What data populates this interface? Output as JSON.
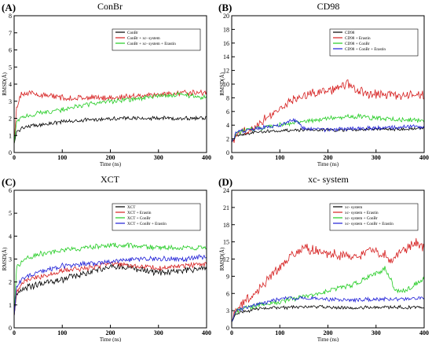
{
  "chart_data": [
    {
      "panel": "(A)",
      "type": "line",
      "title": "ConBr",
      "xlabel": "Time (ns)",
      "ylabel": "RMSD(Å)",
      "xlim": [
        0,
        400
      ],
      "ylim": [
        0,
        8
      ],
      "xticks": [
        0,
        100,
        200,
        300,
        400
      ],
      "yticks": [
        0,
        1,
        2,
        3,
        4,
        5,
        6,
        7,
        8
      ],
      "legend_position": "top-right",
      "series": [
        {
          "name": "ConBr",
          "color": "#000000",
          "x": [
            0,
            5,
            20,
            50,
            100,
            150,
            200,
            250,
            300,
            350,
            400
          ],
          "y": [
            0.5,
            1.2,
            1.5,
            1.6,
            1.8,
            1.9,
            2.0,
            2.0,
            2.0,
            2.0,
            2.0
          ],
          "noise": 0.1
        },
        {
          "name": "ConBr + xc- system",
          "color": "#d62020",
          "x": [
            0,
            5,
            15,
            50,
            100,
            150,
            200,
            250,
            300,
            350,
            400
          ],
          "y": [
            0.5,
            2.6,
            3.5,
            3.4,
            3.2,
            3.2,
            3.2,
            3.3,
            3.4,
            3.5,
            3.5
          ],
          "noise": 0.15
        },
        {
          "name": "ConBr + xc- system + Erastin",
          "color": "#22cc22",
          "x": [
            0,
            5,
            20,
            50,
            100,
            150,
            200,
            250,
            300,
            350,
            400
          ],
          "y": [
            0.5,
            1.8,
            2.1,
            2.3,
            2.5,
            2.8,
            3.0,
            3.1,
            3.3,
            3.4,
            3.2
          ],
          "noise": 0.12
        }
      ]
    },
    {
      "panel": "(B)",
      "type": "line",
      "title": "CD98",
      "xlabel": "Time (ns)",
      "ylabel": "RMSD(Å)",
      "xlim": [
        0,
        400
      ],
      "ylim": [
        0,
        20
      ],
      "xticks": [
        0,
        100,
        200,
        300,
        400
      ],
      "yticks": [
        0,
        2,
        4,
        6,
        8,
        10,
        12,
        14,
        16,
        18,
        20
      ],
      "legend_position": "top-right",
      "series": [
        {
          "name": "CD98",
          "color": "#000000",
          "x": [
            0,
            10,
            50,
            100,
            150,
            200,
            250,
            300,
            350,
            400
          ],
          "y": [
            1.5,
            2.5,
            3.0,
            3.2,
            3.3,
            3.3,
            3.3,
            3.4,
            3.4,
            3.5
          ],
          "noise": 0.2
        },
        {
          "name": "CD98 + Erastin",
          "color": "#d62020",
          "x": [
            0,
            10,
            50,
            100,
            150,
            200,
            240,
            280,
            320,
            360,
            400
          ],
          "y": [
            1.5,
            2.5,
            4.0,
            6.5,
            8.5,
            9.0,
            10.0,
            8.5,
            8.5,
            8.2,
            8.5
          ],
          "noise": 0.6
        },
        {
          "name": "CD98 + ConBr",
          "color": "#22cc22",
          "x": [
            0,
            10,
            50,
            100,
            150,
            200,
            250,
            300,
            350,
            400
          ],
          "y": [
            1.5,
            3.0,
            3.5,
            4.0,
            4.5,
            5.0,
            5.3,
            5.0,
            4.8,
            4.7
          ],
          "noise": 0.3
        },
        {
          "name": "CD98 + ConBr + Erastin",
          "color": "#1f1fd6",
          "x": [
            0,
            10,
            50,
            100,
            130,
            150,
            200,
            250,
            300,
            350,
            400
          ],
          "y": [
            1.5,
            3.0,
            3.5,
            4.0,
            4.8,
            3.5,
            3.3,
            3.5,
            3.6,
            3.7,
            3.8
          ],
          "noise": 0.25
        }
      ]
    },
    {
      "panel": "(C)",
      "type": "line",
      "title": "XCT",
      "xlabel": "Time (ns)",
      "ylabel": "RMSD(Å)",
      "xlim": [
        0,
        400
      ],
      "ylim": [
        0,
        6
      ],
      "xticks": [
        0,
        100,
        200,
        300,
        400
      ],
      "yticks": [
        0,
        1,
        2,
        3,
        4,
        5,
        6
      ],
      "legend_position": "top-right",
      "series": [
        {
          "name": "XCT",
          "color": "#000000",
          "x": [
            0,
            5,
            20,
            50,
            100,
            150,
            200,
            250,
            300,
            350,
            400
          ],
          "y": [
            0.5,
            1.5,
            1.7,
            1.9,
            2.1,
            2.4,
            2.7,
            2.6,
            2.4,
            2.5,
            2.6
          ],
          "noise": 0.12
        },
        {
          "name": "XCT + Erastin",
          "color": "#d62020",
          "x": [
            0,
            5,
            20,
            50,
            100,
            150,
            200,
            250,
            300,
            350,
            400
          ],
          "y": [
            0.5,
            1.6,
            2.0,
            2.2,
            2.5,
            2.6,
            2.8,
            2.7,
            2.6,
            2.7,
            2.8
          ],
          "noise": 0.1
        },
        {
          "name": "XCT + ConBr",
          "color": "#22cc22",
          "x": [
            0,
            5,
            20,
            50,
            100,
            150,
            200,
            250,
            300,
            350,
            400
          ],
          "y": [
            0.5,
            2.6,
            3.0,
            3.2,
            3.4,
            3.5,
            3.6,
            3.6,
            3.5,
            3.5,
            3.5
          ],
          "noise": 0.1
        },
        {
          "name": "XCT + ConBr + Erastin",
          "color": "#1f1fd6",
          "x": [
            0,
            5,
            20,
            50,
            100,
            150,
            200,
            250,
            300,
            350,
            400
          ],
          "y": [
            0.5,
            1.8,
            2.2,
            2.4,
            2.7,
            2.8,
            2.9,
            3.0,
            3.0,
            3.0,
            3.1
          ],
          "noise": 0.1
        }
      ]
    },
    {
      "panel": "(D)",
      "type": "line",
      "title": "xc- system",
      "xlabel": "Time (ns)",
      "ylabel": "RMSD(Å)",
      "xlim": [
        0,
        400
      ],
      "ylim": [
        0,
        24
      ],
      "xticks": [
        0,
        100,
        200,
        300,
        400
      ],
      "yticks": [
        0,
        3,
        6,
        9,
        12,
        15,
        18,
        21,
        24
      ],
      "legend_position": "top-right",
      "series": [
        {
          "name": "xc- system",
          "color": "#000000",
          "x": [
            0,
            10,
            50,
            100,
            150,
            200,
            250,
            300,
            350,
            400
          ],
          "y": [
            1.0,
            2.5,
            3.3,
            3.5,
            3.7,
            3.6,
            3.5,
            3.6,
            3.6,
            3.5
          ],
          "noise": 0.25
        },
        {
          "name": "xc- system + Erastin",
          "color": "#d62020",
          "x": [
            0,
            10,
            50,
            100,
            130,
            150,
            200,
            250,
            300,
            330,
            360,
            380,
            400
          ],
          "y": [
            1.0,
            3.5,
            6.0,
            10.5,
            13.0,
            14.0,
            13.0,
            12.5,
            13.5,
            12.0,
            13.5,
            15.0,
            14.0
          ],
          "noise": 0.8
        },
        {
          "name": "xc- system + ConBr",
          "color": "#22cc22",
          "x": [
            0,
            10,
            50,
            100,
            150,
            200,
            250,
            300,
            320,
            340,
            360,
            400
          ],
          "y": [
            1.0,
            3.0,
            3.8,
            4.5,
            5.5,
            6.5,
            7.5,
            9.5,
            10.5,
            6.5,
            6.5,
            8.5
          ],
          "noise": 0.4
        },
        {
          "name": "xc- system + ConBr + Erastin",
          "color": "#1f1fd6",
          "x": [
            0,
            10,
            50,
            100,
            150,
            200,
            250,
            300,
            350,
            400
          ],
          "y": [
            1.0,
            3.0,
            4.0,
            5.0,
            5.3,
            5.0,
            4.8,
            5.0,
            5.0,
            5.3
          ],
          "noise": 0.3
        }
      ]
    }
  ]
}
